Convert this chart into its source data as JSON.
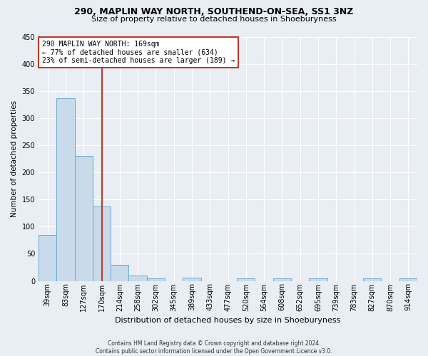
{
  "title1": "290, MAPLIN WAY NORTH, SOUTHEND-ON-SEA, SS1 3NZ",
  "title2": "Size of property relative to detached houses in Shoeburyness",
  "xlabel": "Distribution of detached houses by size in Shoeburyness",
  "ylabel": "Number of detached properties",
  "footer1": "Contains HM Land Registry data © Crown copyright and database right 2024.",
  "footer2": "Contains public sector information licensed under the Open Government Licence v3.0.",
  "annotation_line1": "290 MAPLIN WAY NORTH: 169sqm",
  "annotation_line2": "← 77% of detached houses are smaller (634)",
  "annotation_line3": "23% of semi-detached houses are larger (189) →",
  "bar_color": "#c9daea",
  "bar_edge_color": "#6aaad4",
  "vline_color": "#c0392b",
  "vline_index": 3,
  "categories": [
    "39sqm",
    "83sqm",
    "127sqm",
    "170sqm",
    "214sqm",
    "258sqm",
    "302sqm",
    "345sqm",
    "389sqm",
    "433sqm",
    "477sqm",
    "520sqm",
    "564sqm",
    "608sqm",
    "652sqm",
    "695sqm",
    "739sqm",
    "783sqm",
    "827sqm",
    "870sqm",
    "914sqm"
  ],
  "values": [
    85,
    336,
    230,
    137,
    30,
    10,
    5,
    0,
    6,
    0,
    0,
    4,
    0,
    4,
    0,
    4,
    0,
    0,
    4,
    0,
    4
  ],
  "ylim": [
    0,
    450
  ],
  "yticks": [
    0,
    50,
    100,
    150,
    200,
    250,
    300,
    350,
    400,
    450
  ],
  "bg_color": "#e8eef4",
  "grid_color": "#ffffff",
  "annotation_box_edge": "#c0392b",
  "annotation_box_face": "#ffffff",
  "title1_fontsize": 9,
  "title2_fontsize": 8,
  "xlabel_fontsize": 8,
  "ylabel_fontsize": 7.5,
  "tick_fontsize": 7,
  "footer_fontsize": 5.5,
  "annotation_fontsize": 7
}
